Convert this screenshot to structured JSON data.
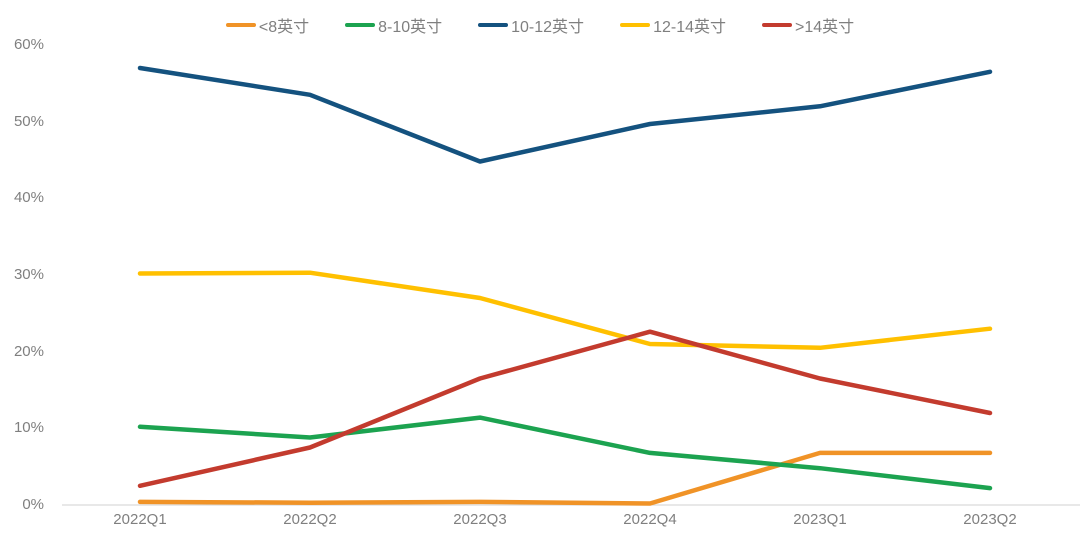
{
  "chart_data": {
    "type": "line",
    "categories": [
      "2022Q1",
      "2022Q2",
      "2022Q3",
      "2022Q4",
      "2023Q1",
      "2023Q2"
    ],
    "series": [
      {
        "name": "<8英寸",
        "color": "#F09327",
        "values": [
          0.4,
          0.3,
          0.4,
          0.2,
          6.8,
          6.8
        ]
      },
      {
        "name": "8-10英寸",
        "color": "#1CA350",
        "values": [
          10.2,
          8.8,
          11.4,
          6.8,
          4.8,
          2.2
        ]
      },
      {
        "name": "10-12英寸",
        "color": "#14527F",
        "values": [
          57.0,
          53.5,
          44.8,
          49.7,
          52.0,
          56.5
        ]
      },
      {
        "name": "12-14英寸",
        "color": "#FFC000",
        "values": [
          30.2,
          30.3,
          27.0,
          21.0,
          20.5,
          23.0
        ]
      },
      {
        "name": ">14英寸",
        "color": "#C33B2E",
        "values": [
          2.5,
          7.5,
          16.5,
          22.6,
          16.5,
          12.0
        ]
      }
    ],
    "title": "",
    "xlabel": "",
    "ylabel": "",
    "ylim": [
      0,
      60
    ],
    "yticks": [
      0,
      10,
      20,
      30,
      40,
      50,
      60
    ],
    "ytick_suffix": "%",
    "grid": false,
    "legend_position": "top",
    "axis_color": "#D9D9D9",
    "label_color": "#7F7F7F"
  }
}
